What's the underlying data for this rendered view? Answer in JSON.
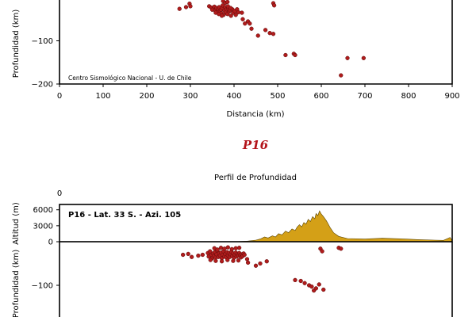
{
  "chart_data": [
    {
      "type": "scatter",
      "title": "",
      "xlabel": "Distancia (km)",
      "ylabel": "Profundidad (km)",
      "xlim": [
        0,
        900
      ],
      "ylim": [
        -200,
        0
      ],
      "xticks": [
        0,
        100,
        200,
        300,
        400,
        500,
        600,
        700,
        800,
        900
      ],
      "yticks": [
        -200,
        -100
      ],
      "credit": "Centro Sismológico Nacional - U. de Chile",
      "marker_color": "#b01c1c",
      "points": [
        [
          275,
          -26
        ],
        [
          290,
          -22
        ],
        [
          298,
          -14
        ],
        [
          300,
          -20
        ],
        [
          343,
          -20
        ],
        [
          348,
          -23
        ],
        [
          352,
          -27
        ],
        [
          355,
          -21
        ],
        [
          357,
          -30
        ],
        [
          360,
          -24
        ],
        [
          362,
          -33
        ],
        [
          364,
          -26
        ],
        [
          366,
          -22
        ],
        [
          368,
          -31
        ],
        [
          370,
          -28
        ],
        [
          371,
          -36
        ],
        [
          373,
          -24
        ],
        [
          374,
          -18
        ],
        [
          376,
          -40
        ],
        [
          378,
          -30
        ],
        [
          380,
          -22
        ],
        [
          381,
          -34
        ],
        [
          383,
          -27
        ],
        [
          385,
          -38
        ],
        [
          387,
          -25
        ],
        [
          389,
          -32
        ],
        [
          391,
          -29
        ],
        [
          393,
          -42
        ],
        [
          396,
          -27
        ],
        [
          398,
          -35
        ],
        [
          402,
          -31
        ],
        [
          404,
          -40
        ],
        [
          407,
          -27
        ],
        [
          410,
          -34
        ],
        [
          350,
          -28
        ],
        [
          358,
          -35
        ],
        [
          365,
          -38
        ],
        [
          372,
          -42
        ],
        [
          386,
          -20
        ],
        [
          392,
          -24
        ],
        [
          375,
          -8
        ],
        [
          380,
          -12
        ],
        [
          385,
          -10
        ],
        [
          418,
          -35
        ],
        [
          420,
          -50
        ],
        [
          425,
          -60
        ],
        [
          432,
          -55
        ],
        [
          436,
          -60
        ],
        [
          440,
          -72
        ],
        [
          455,
          -88
        ],
        [
          472,
          -75
        ],
        [
          482,
          -82
        ],
        [
          490,
          -84
        ],
        [
          490,
          -13
        ],
        [
          492,
          -18
        ],
        [
          518,
          -133
        ],
        [
          537,
          -130
        ],
        [
          540,
          -133
        ],
        [
          645,
          -180
        ],
        [
          660,
          -140
        ],
        [
          697,
          -140
        ]
      ]
    },
    {
      "type": "scatter",
      "title": "Perfil de Profundidad",
      "panel_title": "P16",
      "inner_label": "P16 - Lat. 33 S. - Azi. 105",
      "topo_ylabel": "Altitud (m)",
      "topo_yticks": [
        6000,
        3000,
        0
      ],
      "topo_ylim": [
        0,
        7000
      ],
      "depth_ylabel": "Profundidad (km)",
      "depth_yticks": [
        0,
        -100
      ],
      "top_tick": "0",
      "xlim": [
        0,
        900
      ],
      "topo_color": "#d4a017",
      "marker_color": "#b01c1c",
      "topography": [
        [
          0,
          0
        ],
        [
          400,
          0
        ],
        [
          430,
          100
        ],
        [
          450,
          300
        ],
        [
          460,
          500
        ],
        [
          470,
          900
        ],
        [
          478,
          700
        ],
        [
          488,
          1100
        ],
        [
          495,
          900
        ],
        [
          502,
          1500
        ],
        [
          510,
          1300
        ],
        [
          518,
          2000
        ],
        [
          525,
          1700
        ],
        [
          533,
          2400
        ],
        [
          540,
          2100
        ],
        [
          545,
          2800
        ],
        [
          550,
          3200
        ],
        [
          555,
          2800
        ],
        [
          560,
          3600
        ],
        [
          565,
          3300
        ],
        [
          570,
          4200
        ],
        [
          575,
          3800
        ],
        [
          580,
          4700
        ],
        [
          585,
          4300
        ],
        [
          588,
          5300
        ],
        [
          592,
          4900
        ],
        [
          596,
          5800
        ],
        [
          600,
          5200
        ],
        [
          605,
          4700
        ],
        [
          612,
          3900
        ],
        [
          620,
          2700
        ],
        [
          628,
          1700
        ],
        [
          640,
          1000
        ],
        [
          660,
          600
        ],
        [
          700,
          500
        ],
        [
          740,
          650
        ],
        [
          780,
          550
        ],
        [
          820,
          400
        ],
        [
          860,
          300
        ],
        [
          880,
          250
        ],
        [
          895,
          800
        ],
        [
          900,
          200
        ]
      ],
      "points": [
        [
          283,
          -30
        ],
        [
          295,
          -28
        ],
        [
          303,
          -35
        ],
        [
          318,
          -32
        ],
        [
          328,
          -30
        ],
        [
          340,
          -26
        ],
        [
          342,
          -34
        ],
        [
          345,
          -22
        ],
        [
          348,
          -30
        ],
        [
          350,
          -38
        ],
        [
          352,
          -27
        ],
        [
          354,
          -33
        ],
        [
          356,
          -24
        ],
        [
          358,
          -36
        ],
        [
          360,
          -29
        ],
        [
          362,
          -21
        ],
        [
          364,
          -35
        ],
        [
          366,
          -27
        ],
        [
          368,
          -32
        ],
        [
          370,
          -25
        ],
        [
          372,
          -38
        ],
        [
          374,
          -30
        ],
        [
          376,
          -22
        ],
        [
          378,
          -34
        ],
        [
          380,
          -28
        ],
        [
          382,
          -36
        ],
        [
          384,
          -24
        ],
        [
          386,
          -31
        ],
        [
          388,
          -26
        ],
        [
          390,
          -35
        ],
        [
          392,
          -29
        ],
        [
          394,
          -23
        ],
        [
          396,
          -33
        ],
        [
          398,
          -27
        ],
        [
          400,
          -37
        ],
        [
          402,
          -30
        ],
        [
          404,
          -25
        ],
        [
          406,
          -34
        ],
        [
          408,
          -28
        ],
        [
          410,
          -32
        ],
        [
          412,
          -26
        ],
        [
          414,
          -31
        ],
        [
          416,
          -36
        ],
        [
          418,
          -29
        ],
        [
          420,
          -33
        ],
        [
          422,
          -27
        ],
        [
          424,
          -30
        ],
        [
          355,
          -15
        ],
        [
          362,
          -18
        ],
        [
          370,
          -14
        ],
        [
          378,
          -16
        ],
        [
          386,
          -13
        ],
        [
          395,
          -17
        ],
        [
          404,
          -15
        ],
        [
          412,
          -14
        ],
        [
          346,
          -42
        ],
        [
          358,
          -44
        ],
        [
          372,
          -45
        ],
        [
          385,
          -42
        ],
        [
          398,
          -44
        ],
        [
          410,
          -43
        ],
        [
          430,
          -40
        ],
        [
          432,
          -48
        ],
        [
          450,
          -55
        ],
        [
          460,
          -50
        ],
        [
          475,
          -45
        ],
        [
          540,
          -88
        ],
        [
          553,
          -90
        ],
        [
          562,
          -95
        ],
        [
          572,
          -100
        ],
        [
          578,
          -103
        ],
        [
          583,
          -112
        ],
        [
          588,
          -107
        ],
        [
          595,
          -98
        ],
        [
          605,
          -110
        ],
        [
          598,
          -16
        ],
        [
          602,
          -22
        ],
        [
          640,
          -14
        ],
        [
          645,
          -16
        ]
      ]
    }
  ]
}
